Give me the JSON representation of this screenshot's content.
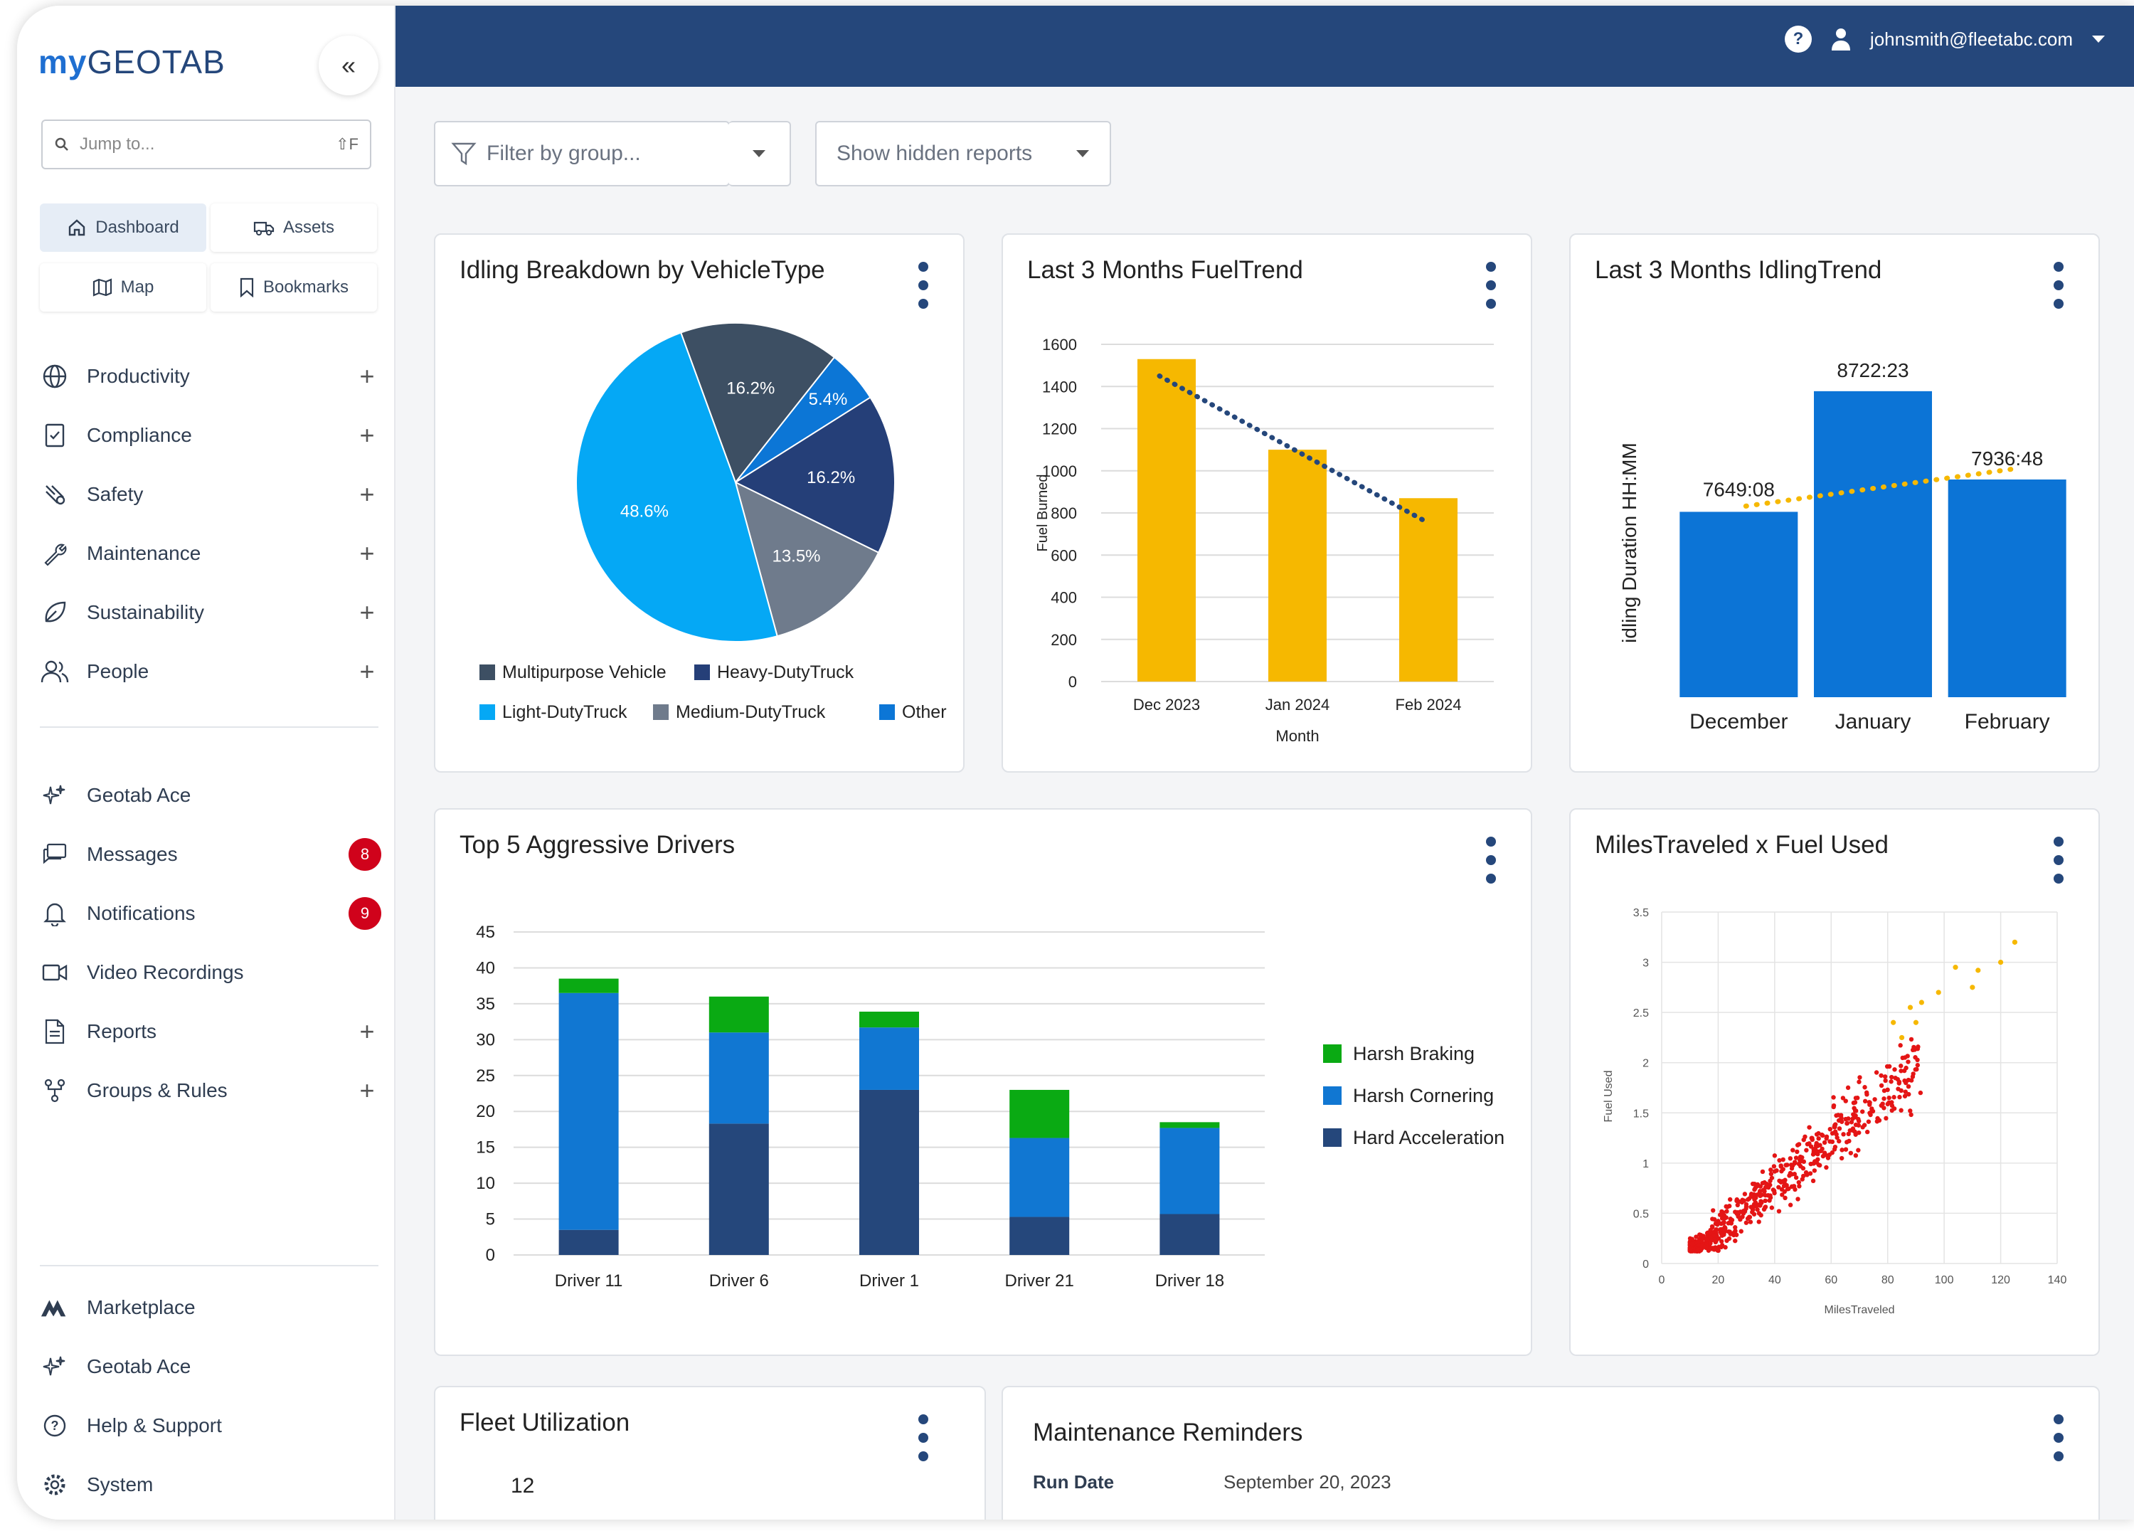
{
  "app": {
    "logo_prefix": "my",
    "logo_main": "GEOTAB",
    "user_email": "johnsmith@fleetabc.com"
  },
  "sidebar": {
    "jump_placeholder": "Jump to...",
    "jump_shortcut": "⇧F",
    "quick": [
      {
        "label": "Dashboard",
        "icon": "home-icon"
      },
      {
        "label": "Assets",
        "icon": "truck-icon"
      },
      {
        "label": "Map",
        "icon": "map-icon"
      },
      {
        "label": "Bookmarks",
        "icon": "bookmark-icon"
      }
    ],
    "menu": [
      {
        "label": "Productivity",
        "icon": "globe-icon",
        "expandable": true
      },
      {
        "label": "Compliance",
        "icon": "clipboard-icon",
        "expandable": true
      },
      {
        "label": "Safety",
        "icon": "safety-icon",
        "expandable": true
      },
      {
        "label": "Maintenance",
        "icon": "wrench-icon",
        "expandable": true
      },
      {
        "label": "Sustainability",
        "icon": "leaf-icon",
        "expandable": true
      },
      {
        "label": "People",
        "icon": "people-icon",
        "expandable": true
      }
    ],
    "menu2": [
      {
        "label": "Geotab Ace",
        "icon": "sparkle-icon"
      },
      {
        "label": "Messages",
        "icon": "messages-icon",
        "badge": "8"
      },
      {
        "label": "Notifications",
        "icon": "bell-icon",
        "badge": "9"
      },
      {
        "label": "Video Recordings",
        "icon": "video-icon"
      },
      {
        "label": "Reports",
        "icon": "report-icon",
        "expandable": true
      },
      {
        "label": "Groups & Rules",
        "icon": "groups-icon",
        "expandable": true
      }
    ],
    "bottom": [
      {
        "label": "Marketplace",
        "icon": "marketplace-icon"
      },
      {
        "label": "Geotab Ace",
        "icon": "sparkle-icon"
      },
      {
        "label": "Help & Support",
        "icon": "help-icon"
      },
      {
        "label": "System",
        "icon": "gear-icon"
      }
    ]
  },
  "filters": {
    "group_placeholder": "Filter by group...",
    "hidden_reports": "Show hidden reports"
  },
  "cards": {
    "idling_breakdown": "Idling Breakdown by VehicleType",
    "fuel_trend": "Last 3 Months FuelTrend",
    "idling_trend": "Last 3 Months IdlingTrend",
    "aggressive": "Top 5 Aggressive Drivers",
    "miles_fuel": "MilesTraveled x Fuel Used",
    "fleet_util": "Fleet Utilization",
    "fleet_util_value": "12",
    "maintenance": "Maintenance Reminders",
    "run_date_label": "Run Date",
    "run_date_value": "September 20, 2023"
  },
  "colors": {
    "navy": "#25477b",
    "accent": "#1f6fd1",
    "badge": "#d0021b"
  },
  "chart_data": [
    {
      "type": "pie",
      "title": "Idling Breakdown by VehicleType",
      "slices": [
        {
          "label": "Multipurpose Vehicle",
          "value": 16.2,
          "color": "#3d4f63"
        },
        {
          "label": "Other",
          "value": 5.4,
          "color": "#0c76d6"
        },
        {
          "label": "Heavy-DutyTruck",
          "value": 16.2,
          "color": "#253f78"
        },
        {
          "label": "Medium-DutyTruck",
          "value": 13.5,
          "color": "#6f7b8c"
        },
        {
          "label": "Light-DutyTruck",
          "value": 48.6,
          "color": "#05a8f5"
        }
      ],
      "legend": [
        "Multipurpose Vehicle",
        "Heavy-DutyTruck",
        "Light-DutyTruck",
        "Medium-DutyTruck",
        "Other"
      ]
    },
    {
      "type": "bar",
      "title": "Last 3 Months FuelTrend",
      "categories": [
        "Dec 2023",
        "Jan 2024",
        "Feb 2024"
      ],
      "values": [
        1530,
        1100,
        870
      ],
      "trendline": [
        1450,
        1110,
        760
      ],
      "xlabel": "Month",
      "ylabel": "Fuel Burned",
      "ylim": [
        0,
        1600
      ],
      "yticks": [
        0,
        200,
        400,
        600,
        800,
        1000,
        1200,
        1400,
        1600
      ],
      "color": "#f6b800"
    },
    {
      "type": "bar",
      "title": "Last 3 Months IdlingTrend",
      "categories": [
        "December",
        "January",
        "February"
      ],
      "values": [
        7649.13,
        8722.38,
        7936.8
      ],
      "labels": [
        "7649:08",
        "8722:23",
        "7936:48"
      ],
      "ylabel": "idling Duration HH:MM",
      "ylim": [
        6000,
        9000
      ],
      "color": "#0c74d6"
    },
    {
      "type": "bar",
      "stacked": true,
      "title": "Top 5 Aggressive Drivers",
      "categories": [
        "Driver 11",
        "Driver 6",
        "Driver 1",
        "Driver 21",
        "Driver 18"
      ],
      "series": [
        {
          "name": "Hard Acceleration",
          "color": "#25477b",
          "values": [
            3.5,
            18.3,
            23,
            5.3,
            5.7
          ]
        },
        {
          "name": "Harsh Cornering",
          "color": "#1177d2",
          "values": [
            33,
            12.7,
            8.7,
            11,
            12
          ]
        },
        {
          "name": "Harsh Braking",
          "color": "#0aaa13",
          "values": [
            2,
            5,
            2.2,
            6.7,
            0.8
          ]
        }
      ],
      "legend_order": [
        "Harsh Braking",
        "Harsh Cornering",
        "Hard Acceleration"
      ],
      "ylim": [
        0,
        45
      ],
      "yticks": [
        0,
        5,
        10,
        15,
        20,
        25,
        30,
        35,
        40,
        45
      ]
    },
    {
      "type": "scatter",
      "title": "MilesTraveled x Fuel Used",
      "xlabel": "MilesTraveled",
      "ylabel": "Fuel Used",
      "xlim": [
        0,
        140
      ],
      "ylim": [
        0,
        3.5
      ],
      "xticks": [
        0,
        20,
        40,
        60,
        80,
        100,
        120,
        140
      ],
      "yticks": [
        0,
        0.5,
        1,
        1.5,
        2,
        2.5,
        3,
        3.5
      ],
      "point_count": 620,
      "trend": {
        "slope": 0.0235,
        "intercept": -0.15
      },
      "highlight_points": [
        [
          82,
          2.4
        ],
        [
          88,
          2.55
        ],
        [
          92,
          2.6
        ],
        [
          98,
          2.7
        ],
        [
          104,
          2.95
        ],
        [
          112,
          2.92
        ],
        [
          120,
          3.0
        ],
        [
          125,
          3.2
        ],
        [
          85,
          2.25
        ],
        [
          90,
          2.4
        ],
        [
          110,
          2.75
        ]
      ],
      "color": "#e41515",
      "highlight_color": "#f6b800"
    }
  ]
}
